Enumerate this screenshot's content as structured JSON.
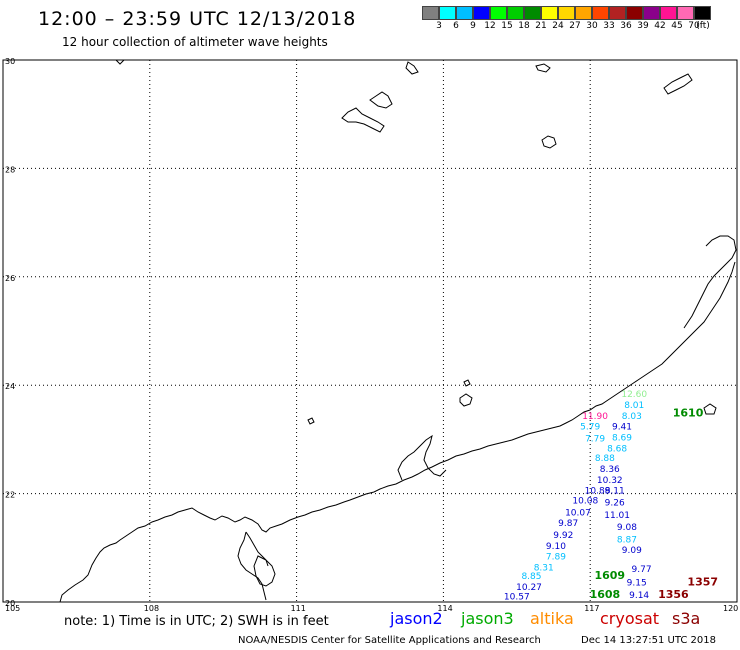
{
  "header": {
    "title": "12:00 – 23:59 UTC 12/13/2018",
    "subtitle": "12 hour collection of altimeter wave heights"
  },
  "colorbar": {
    "colors": [
      "#808080",
      "#00ffff",
      "#00bfff",
      "#0000ff",
      "#00ff00",
      "#00cd00",
      "#008b00",
      "#ffff00",
      "#ffd700",
      "#ffa500",
      "#ff4500",
      "#b22222",
      "#8b0000",
      "#8b008b",
      "#ff1493",
      "#ff69b4",
      "#000000"
    ],
    "labels": [
      "3",
      "6",
      "9",
      "12",
      "15",
      "18",
      "21",
      "24",
      "27",
      "30",
      "33",
      "36",
      "39",
      "42",
      "45",
      "70",
      "(ft)"
    ]
  },
  "map": {
    "lat_labels": [
      "30",
      "28",
      "26",
      "24",
      "22",
      "20"
    ],
    "lon_labels": [
      "105",
      "108",
      "111",
      "114",
      "117",
      "120"
    ]
  },
  "chart_data": {
    "type": "scatter",
    "xlabel": "",
    "ylabel": "",
    "xlim": [
      105,
      120
    ],
    "ylim": [
      20,
      30
    ],
    "grid": true,
    "value_labels": [
      {
        "text": "12.60",
        "lon": 117.9,
        "lat": 23.78,
        "color": "#90ee90"
      },
      {
        "text": "8.01",
        "lon": 117.9,
        "lat": 23.58,
        "color": "#00bfff"
      },
      {
        "text": "8.03",
        "lon": 117.85,
        "lat": 23.38,
        "color": "#00bfff"
      },
      {
        "text": "11.90",
        "lon": 117.1,
        "lat": 23.38,
        "color": "#ff1493"
      },
      {
        "text": "9.41",
        "lon": 117.65,
        "lat": 23.18,
        "color": "#0000cd"
      },
      {
        "text": "5.79",
        "lon": 117.0,
        "lat": 23.18,
        "color": "#00bfff"
      },
      {
        "text": "8.69",
        "lon": 117.65,
        "lat": 22.98,
        "color": "#00bfff"
      },
      {
        "text": "7.79",
        "lon": 117.1,
        "lat": 22.96,
        "color": "#00bfff"
      },
      {
        "text": "8.68",
        "lon": 117.55,
        "lat": 22.78,
        "color": "#00bfff"
      },
      {
        "text": "8.88",
        "lon": 117.3,
        "lat": 22.6,
        "color": "#00bfff"
      },
      {
        "text": "8.36",
        "lon": 117.4,
        "lat": 22.4,
        "color": "#0000cd"
      },
      {
        "text": "10.32",
        "lon": 117.4,
        "lat": 22.2,
        "color": "#0000cd"
      },
      {
        "text": "10.88",
        "lon": 117.15,
        "lat": 22.0,
        "color": "#0000cd"
      },
      {
        "text": "9.11",
        "lon": 117.5,
        "lat": 22.0,
        "color": "#0000cd"
      },
      {
        "text": "10.08",
        "lon": 116.9,
        "lat": 21.82,
        "color": "#0000cd"
      },
      {
        "text": "9.26",
        "lon": 117.5,
        "lat": 21.78,
        "color": "#0000cd"
      },
      {
        "text": "10.07",
        "lon": 116.75,
        "lat": 21.6,
        "color": "#0000cd"
      },
      {
        "text": "11.01",
        "lon": 117.55,
        "lat": 21.55,
        "color": "#0000cd"
      },
      {
        "text": "9.87",
        "lon": 116.55,
        "lat": 21.4,
        "color": "#0000cd"
      },
      {
        "text": "9.08",
        "lon": 117.75,
        "lat": 21.33,
        "color": "#0000cd"
      },
      {
        "text": "9.92",
        "lon": 116.45,
        "lat": 21.18,
        "color": "#0000cd"
      },
      {
        "text": "8.87",
        "lon": 117.75,
        "lat": 21.1,
        "color": "#00bfff"
      },
      {
        "text": "9.10",
        "lon": 116.3,
        "lat": 20.98,
        "color": "#0000cd"
      },
      {
        "text": "9.09",
        "lon": 117.85,
        "lat": 20.9,
        "color": "#0000cd"
      },
      {
        "text": "7.89",
        "lon": 116.3,
        "lat": 20.78,
        "color": "#00bfff"
      },
      {
        "text": "8.31",
        "lon": 116.05,
        "lat": 20.58,
        "color": "#00bfff"
      },
      {
        "text": "9.77",
        "lon": 118.05,
        "lat": 20.55,
        "color": "#0000cd"
      },
      {
        "text": "1609",
        "lon": 117.4,
        "lat": 20.42,
        "color": "#008b00"
      },
      {
        "text": "8.85",
        "lon": 115.8,
        "lat": 20.42,
        "color": "#00bfff"
      },
      {
        "text": "9.15",
        "lon": 117.95,
        "lat": 20.3,
        "color": "#0000cd"
      },
      {
        "text": "1357",
        "lon": 119.3,
        "lat": 20.3,
        "color": "#8b0000"
      },
      {
        "text": "10.27",
        "lon": 115.75,
        "lat": 20.22,
        "color": "#0000cd"
      },
      {
        "text": "1608",
        "lon": 117.3,
        "lat": 20.07,
        "color": "#008b00"
      },
      {
        "text": "9.14",
        "lon": 118.0,
        "lat": 20.07,
        "color": "#0000cd"
      },
      {
        "text": "1356",
        "lon": 118.7,
        "lat": 20.07,
        "color": "#8b0000"
      },
      {
        "text": "10.57",
        "lon": 115.5,
        "lat": 20.05,
        "color": "#0000cd"
      },
      {
        "text": "1610",
        "lon": 119.0,
        "lat": 23.42,
        "color": "#008b00"
      }
    ]
  },
  "footer": {
    "note": "note: 1) Time is in UTC; 2) SWH is in feet",
    "satellites": [
      {
        "name": "jason2",
        "color": "#0000ff"
      },
      {
        "name": "jason3",
        "color": "#00aa00"
      },
      {
        "name": "altika",
        "color": "#ff8c00"
      },
      {
        "name": "cryosat",
        "color": "#cc0000"
      },
      {
        "name": "s3a",
        "color": "#8b0000"
      }
    ],
    "credit": "NOAA/NESDIS Center for Satellite Applications and Research",
    "timestamp": "Dec 14 13:27:51 UTC 2018"
  }
}
